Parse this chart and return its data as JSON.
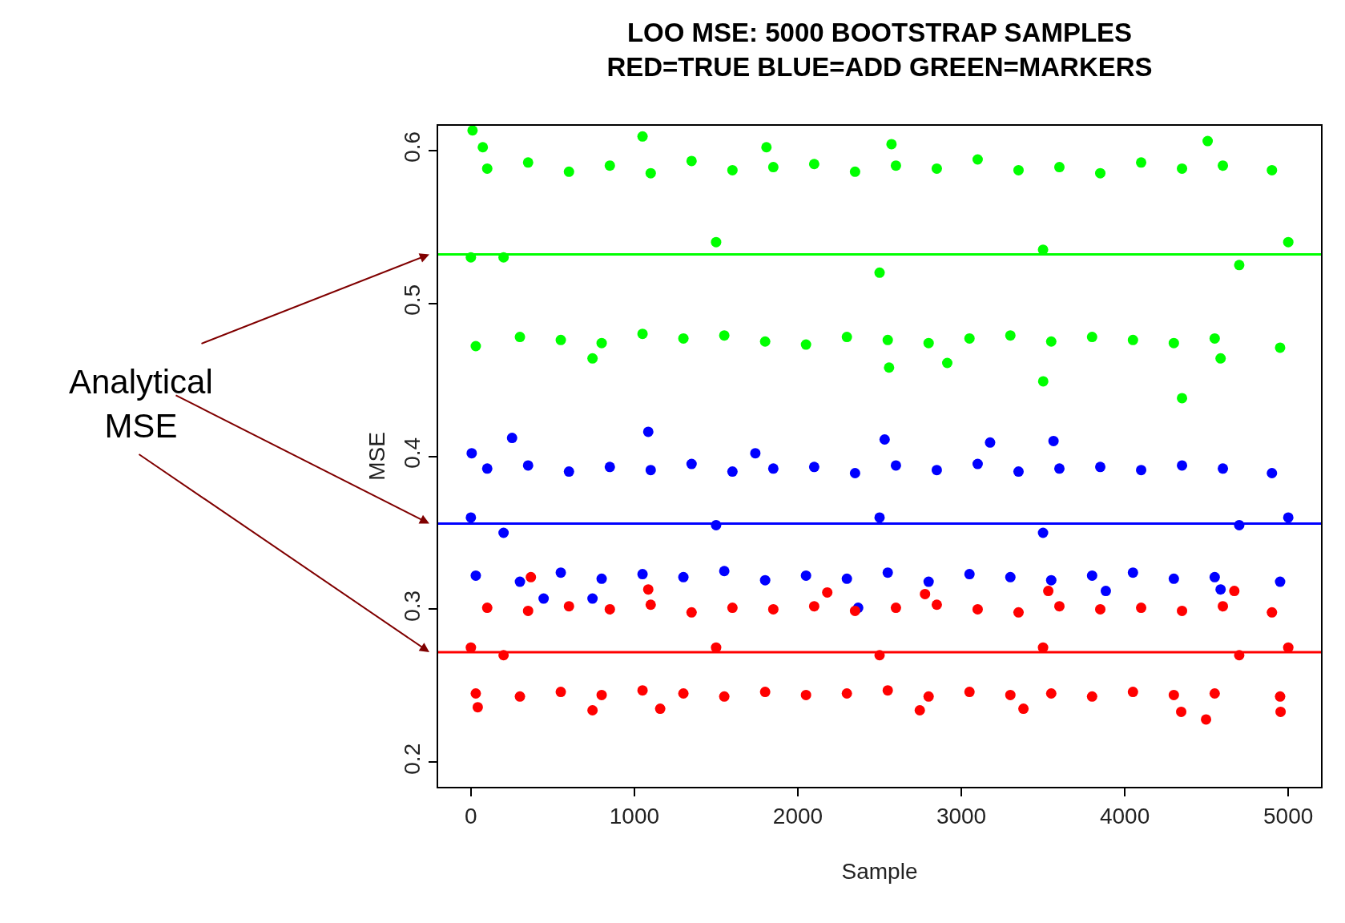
{
  "chart_data": {
    "type": "scatter",
    "title": "LOO MSE: 5000 BOOTSTRAP SAMPLES\nRED=TRUE BLUE=ADD GREEN=MARKERS",
    "xlabel": "Sample",
    "ylabel": "MSE",
    "annotations": [
      "Analytical\nMSE"
    ],
    "xlim": [
      -200,
      5200
    ],
    "xticks": [
      0,
      1000,
      2000,
      3000,
      4000,
      5000
    ],
    "ylim": [
      0.184,
      0.616
    ],
    "yticks": [
      0.2,
      0.3,
      0.4,
      0.5,
      0.6
    ],
    "marker": "circle",
    "series": [
      {
        "color": "#00ff00",
        "x": [
          100,
          350,
          600,
          850,
          1100,
          1350,
          1600,
          1850,
          2100,
          2350,
          2600,
          2850,
          3100,
          3350,
          3600,
          3850,
          4100,
          4350,
          4600,
          4900,
          30,
          300,
          550,
          800,
          1050,
          1300,
          1550,
          1800,
          2050,
          2300,
          2550,
          2800,
          3050,
          3300,
          3550,
          3800,
          4050,
          4300,
          4550,
          4950,
          0,
          200,
          1500,
          2500,
          3500,
          4700,
          5000,
          10,
          73,
          1050,
          1808,
          2573,
          4507,
          4350,
          3501,
          2558,
          2914,
          744,
          4586
        ],
        "values": [
          0.588,
          0.592,
          0.586,
          0.59,
          0.585,
          0.593,
          0.587,
          0.589,
          0.591,
          0.586,
          0.59,
          0.588,
          0.594,
          0.587,
          0.589,
          0.585,
          0.592,
          0.588,
          0.59,
          0.587,
          0.472,
          0.478,
          0.476,
          0.474,
          0.48,
          0.477,
          0.479,
          0.475,
          0.473,
          0.478,
          0.476,
          0.474,
          0.477,
          0.479,
          0.475,
          0.478,
          0.476,
          0.474,
          0.477,
          0.471,
          0.53,
          0.53,
          0.54,
          0.52,
          0.535,
          0.525,
          0.54,
          0.613,
          0.602,
          0.609,
          0.602,
          0.604,
          0.606,
          0.438,
          0.449,
          0.458,
          0.461,
          0.464,
          0.464
        ]
      },
      {
        "color": "#0000ff",
        "x": [
          100,
          350,
          600,
          850,
          1100,
          1350,
          1600,
          1850,
          2100,
          2350,
          2600,
          2850,
          3100,
          3350,
          3600,
          3850,
          4100,
          4350,
          4600,
          4900,
          30,
          300,
          550,
          800,
          1050,
          1300,
          1550,
          1800,
          2050,
          2300,
          2550,
          2800,
          3050,
          3300,
          3550,
          3800,
          4050,
          4300,
          4550,
          4950,
          0,
          200,
          1500,
          2500,
          3500,
          4700,
          5000,
          1085,
          252,
          2531,
          3564,
          3176,
          5,
          1740,
          744,
          445,
          2369,
          3884,
          4586
        ],
        "values": [
          0.392,
          0.394,
          0.39,
          0.393,
          0.391,
          0.395,
          0.39,
          0.392,
          0.393,
          0.389,
          0.394,
          0.391,
          0.395,
          0.39,
          0.392,
          0.393,
          0.391,
          0.394,
          0.392,
          0.389,
          0.322,
          0.318,
          0.324,
          0.32,
          0.323,
          0.321,
          0.325,
          0.319,
          0.322,
          0.32,
          0.324,
          0.318,
          0.323,
          0.321,
          0.319,
          0.322,
          0.324,
          0.32,
          0.321,
          0.318,
          0.36,
          0.35,
          0.355,
          0.36,
          0.35,
          0.355,
          0.36,
          0.416,
          0.412,
          0.411,
          0.41,
          0.409,
          0.402,
          0.402,
          0.307,
          0.307,
          0.301,
          0.312,
          0.313
        ]
      },
      {
        "color": "#ff0000",
        "x": [
          100,
          350,
          600,
          850,
          1100,
          1350,
          1600,
          1850,
          2100,
          2350,
          2600,
          2850,
          3100,
          3350,
          3600,
          3850,
          4100,
          4350,
          4600,
          4900,
          30,
          300,
          550,
          800,
          1050,
          1300,
          1550,
          1800,
          2050,
          2300,
          2550,
          2800,
          3050,
          3300,
          3550,
          3800,
          4050,
          4300,
          4550,
          4950,
          0,
          200,
          1500,
          2500,
          3500,
          4700,
          5000,
          367,
          1085,
          2180,
          2778,
          3532,
          4670,
          4497,
          744,
          1158,
          2746,
          3380,
          4345,
          4953,
          42
        ],
        "values": [
          0.301,
          0.299,
          0.302,
          0.3,
          0.303,
          0.298,
          0.301,
          0.3,
          0.302,
          0.299,
          0.301,
          0.303,
          0.3,
          0.298,
          0.302,
          0.3,
          0.301,
          0.299,
          0.302,
          0.298,
          0.245,
          0.243,
          0.246,
          0.244,
          0.247,
          0.245,
          0.243,
          0.246,
          0.244,
          0.245,
          0.247,
          0.243,
          0.246,
          0.244,
          0.245,
          0.243,
          0.246,
          0.244,
          0.245,
          0.243,
          0.275,
          0.27,
          0.275,
          0.27,
          0.275,
          0.27,
          0.275,
          0.321,
          0.313,
          0.311,
          0.31,
          0.312,
          0.312,
          0.228,
          0.234,
          0.235,
          0.234,
          0.235,
          0.233,
          0.233,
          0.236
        ]
      }
    ],
    "ref_lines": [
      {
        "axis": "y",
        "value": 0.532,
        "color": "#00ff00"
      },
      {
        "axis": "y",
        "value": 0.356,
        "color": "#0000ff"
      },
      {
        "axis": "y",
        "value": 0.272,
        "color": "#ff0000"
      }
    ]
  }
}
